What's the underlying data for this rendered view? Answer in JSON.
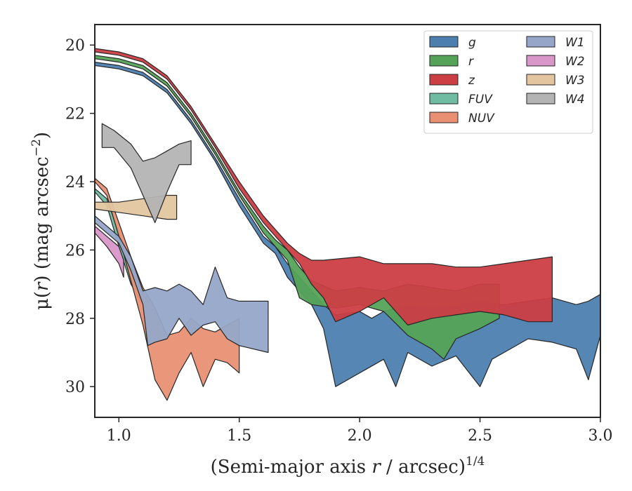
{
  "chart_data": {
    "type": "area",
    "xlabel_main": "(Semi-major axis ",
    "xlabel_var": "r",
    "xlabel_rest": " / arcsec)",
    "xlabel_sup": "1/4",
    "ylabel_main": "μ(",
    "ylabel_var": "r",
    "ylabel_rest": ") (mag arcsec",
    "ylabel_sup": "−2",
    "ylabel_end": ")",
    "xlim": [
      0.9,
      3.0
    ],
    "ylim": [
      30.9,
      19.4
    ],
    "xticks": [
      1.0,
      1.5,
      2.0,
      2.5,
      3.0
    ],
    "xtick_labels": [
      "1.0",
      "1.5",
      "2.0",
      "2.5",
      "3.0"
    ],
    "yticks": [
      20,
      22,
      24,
      26,
      28,
      30
    ],
    "ytick_labels": [
      "20",
      "22",
      "24",
      "26",
      "28",
      "30"
    ],
    "legend_position": "top-right",
    "series": [
      {
        "name": "g",
        "color": "#4c7fb0",
        "upper": [
          [
            0.9,
            20.5
          ],
          [
            1.0,
            20.6
          ],
          [
            1.1,
            20.8
          ],
          [
            1.2,
            21.3
          ],
          [
            1.3,
            22.2
          ],
          [
            1.4,
            23.3
          ],
          [
            1.5,
            24.5
          ],
          [
            1.6,
            25.6
          ],
          [
            1.65,
            25.9
          ],
          [
            1.7,
            26.4
          ],
          [
            1.75,
            26.8
          ],
          [
            1.8,
            27.2
          ],
          [
            1.85,
            27.6
          ],
          [
            1.9,
            27.9
          ],
          [
            2.0,
            27.8
          ],
          [
            2.05,
            28.0
          ],
          [
            2.1,
            27.8
          ],
          [
            2.2,
            27.6
          ],
          [
            2.3,
            27.7
          ],
          [
            2.4,
            27.6
          ],
          [
            2.5,
            27.5
          ],
          [
            2.6,
            27.6
          ],
          [
            2.7,
            27.5
          ],
          [
            2.8,
            27.4
          ],
          [
            2.9,
            27.6
          ],
          [
            2.95,
            27.5
          ],
          [
            3.0,
            27.3
          ]
        ],
        "lower": [
          [
            0.9,
            20.6
          ],
          [
            1.0,
            20.7
          ],
          [
            1.1,
            20.9
          ],
          [
            1.2,
            21.4
          ],
          [
            1.3,
            22.3
          ],
          [
            1.4,
            23.4
          ],
          [
            1.5,
            24.7
          ],
          [
            1.6,
            25.8
          ],
          [
            1.65,
            26.1
          ],
          [
            1.7,
            26.8
          ],
          [
            1.75,
            27.2
          ],
          [
            1.8,
            27.6
          ],
          [
            1.85,
            28.3
          ],
          [
            1.9,
            30.0
          ],
          [
            2.0,
            29.6
          ],
          [
            2.1,
            29.2
          ],
          [
            2.15,
            30.0
          ],
          [
            2.2,
            29.0
          ],
          [
            2.3,
            29.4
          ],
          [
            2.4,
            29.1
          ],
          [
            2.5,
            30.0
          ],
          [
            2.55,
            29.2
          ],
          [
            2.6,
            29.0
          ],
          [
            2.7,
            28.6
          ],
          [
            2.8,
            28.7
          ],
          [
            2.9,
            28.9
          ],
          [
            2.95,
            29.8
          ],
          [
            3.0,
            28.5
          ]
        ]
      },
      {
        "name": "r",
        "color": "#55a358",
        "upper": [
          [
            0.9,
            20.3
          ],
          [
            1.0,
            20.4
          ],
          [
            1.1,
            20.6
          ],
          [
            1.2,
            21.1
          ],
          [
            1.3,
            22.0
          ],
          [
            1.4,
            23.1
          ],
          [
            1.5,
            24.3
          ],
          [
            1.6,
            25.3
          ],
          [
            1.65,
            25.7
          ],
          [
            1.7,
            26.0
          ],
          [
            1.75,
            26.5
          ],
          [
            1.8,
            26.9
          ],
          [
            1.9,
            27.2
          ],
          [
            2.0,
            27.1
          ],
          [
            2.1,
            27.2
          ],
          [
            2.2,
            27.0
          ],
          [
            2.3,
            27.1
          ],
          [
            2.4,
            27.2
          ],
          [
            2.5,
            27.0
          ],
          [
            2.58,
            27.0
          ]
        ],
        "lower": [
          [
            0.9,
            20.4
          ],
          [
            1.0,
            20.5
          ],
          [
            1.1,
            20.7
          ],
          [
            1.2,
            21.2
          ],
          [
            1.3,
            22.1
          ],
          [
            1.4,
            23.2
          ],
          [
            1.5,
            24.4
          ],
          [
            1.6,
            25.5
          ],
          [
            1.65,
            25.9
          ],
          [
            1.7,
            26.3
          ],
          [
            1.75,
            27.4
          ],
          [
            1.8,
            27.6
          ],
          [
            1.9,
            27.7
          ],
          [
            2.0,
            27.6
          ],
          [
            2.1,
            27.8
          ],
          [
            2.2,
            28.5
          ],
          [
            2.3,
            28.9
          ],
          [
            2.35,
            29.2
          ],
          [
            2.4,
            28.6
          ],
          [
            2.5,
            28.3
          ],
          [
            2.58,
            28.0
          ]
        ]
      },
      {
        "name": "z",
        "color": "#cb3e44",
        "upper": [
          [
            0.9,
            20.1
          ],
          [
            1.0,
            20.2
          ],
          [
            1.1,
            20.4
          ],
          [
            1.2,
            20.9
          ],
          [
            1.3,
            21.8
          ],
          [
            1.4,
            22.9
          ],
          [
            1.5,
            24.0
          ],
          [
            1.6,
            25.0
          ],
          [
            1.65,
            25.4
          ],
          [
            1.7,
            25.8
          ],
          [
            1.75,
            26.1
          ],
          [
            1.8,
            26.3
          ],
          [
            1.85,
            26.3
          ],
          [
            2.0,
            26.2
          ],
          [
            2.1,
            26.4
          ],
          [
            2.2,
            26.4
          ],
          [
            2.3,
            26.4
          ],
          [
            2.4,
            26.5
          ],
          [
            2.5,
            26.5
          ],
          [
            2.6,
            26.4
          ],
          [
            2.7,
            26.3
          ],
          [
            2.8,
            26.2
          ]
        ],
        "lower": [
          [
            0.9,
            20.2
          ],
          [
            1.0,
            20.3
          ],
          [
            1.1,
            20.5
          ],
          [
            1.2,
            21.0
          ],
          [
            1.3,
            21.9
          ],
          [
            1.4,
            23.0
          ],
          [
            1.5,
            24.2
          ],
          [
            1.6,
            25.2
          ],
          [
            1.65,
            25.6
          ],
          [
            1.7,
            26.0
          ],
          [
            1.75,
            26.4
          ],
          [
            1.8,
            27.0
          ],
          [
            1.85,
            27.4
          ],
          [
            1.9,
            28.1
          ],
          [
            2.0,
            27.8
          ],
          [
            2.1,
            27.4
          ],
          [
            2.2,
            28.2
          ],
          [
            2.3,
            28.0
          ],
          [
            2.4,
            27.9
          ],
          [
            2.5,
            27.8
          ],
          [
            2.6,
            27.9
          ],
          [
            2.7,
            28.1
          ],
          [
            2.8,
            28.1
          ]
        ]
      },
      {
        "name": "FUV",
        "color": "#6fbca2",
        "upper": [
          [
            0.9,
            24.2
          ],
          [
            0.95,
            24.5
          ],
          [
            1.0,
            25.5
          ],
          [
            1.05,
            26.5
          ],
          [
            1.1,
            27.3
          ],
          [
            1.15,
            27.8
          ]
        ],
        "lower": [
          [
            0.9,
            24.3
          ],
          [
            0.95,
            24.7
          ],
          [
            1.0,
            25.9
          ],
          [
            1.05,
            27.0
          ],
          [
            1.1,
            27.6
          ],
          [
            1.15,
            28.0
          ]
        ]
      },
      {
        "name": "NUV",
        "color": "#e99073",
        "upper": [
          [
            0.9,
            23.9
          ],
          [
            0.95,
            24.2
          ],
          [
            1.0,
            25.2
          ],
          [
            1.05,
            26.2
          ],
          [
            1.1,
            27.1
          ],
          [
            1.15,
            27.7
          ],
          [
            1.2,
            28.5
          ],
          [
            1.25,
            28.4
          ],
          [
            1.3,
            28.0
          ],
          [
            1.35,
            28.3
          ],
          [
            1.4,
            28.4
          ],
          [
            1.45,
            28.2
          ],
          [
            1.5,
            28.0
          ]
        ],
        "lower": [
          [
            0.9,
            24.0
          ],
          [
            0.95,
            24.4
          ],
          [
            1.0,
            25.6
          ],
          [
            1.05,
            26.9
          ],
          [
            1.1,
            28.2
          ],
          [
            1.15,
            29.8
          ],
          [
            1.2,
            30.4
          ],
          [
            1.25,
            29.6
          ],
          [
            1.3,
            29.0
          ],
          [
            1.35,
            30.0
          ],
          [
            1.4,
            29.2
          ],
          [
            1.45,
            29.3
          ],
          [
            1.5,
            29.6
          ]
        ]
      },
      {
        "name": "W1",
        "color": "#95a6c8",
        "upper": [
          [
            0.9,
            25.0
          ],
          [
            1.0,
            25.6
          ],
          [
            1.05,
            26.2
          ],
          [
            1.1,
            27.2
          ],
          [
            1.15,
            27.1
          ],
          [
            1.2,
            27.2
          ],
          [
            1.25,
            27.0
          ],
          [
            1.3,
            27.2
          ],
          [
            1.35,
            27.6
          ],
          [
            1.4,
            26.5
          ],
          [
            1.45,
            27.4
          ],
          [
            1.5,
            27.5
          ],
          [
            1.62,
            27.5
          ]
        ],
        "lower": [
          [
            0.9,
            25.2
          ],
          [
            1.0,
            25.8
          ],
          [
            1.05,
            26.6
          ],
          [
            1.1,
            27.6
          ],
          [
            1.12,
            28.8
          ],
          [
            1.15,
            28.7
          ],
          [
            1.2,
            28.6
          ],
          [
            1.25,
            28.0
          ],
          [
            1.3,
            28.5
          ],
          [
            1.35,
            28.2
          ],
          [
            1.4,
            28.1
          ],
          [
            1.45,
            28.6
          ],
          [
            1.5,
            28.8
          ],
          [
            1.62,
            29.0
          ]
        ]
      },
      {
        "name": "W2",
        "color": "#d996c8",
        "upper": [
          [
            0.9,
            25.3
          ],
          [
            0.95,
            25.6
          ],
          [
            1.0,
            25.9
          ],
          [
            1.02,
            26.3
          ]
        ],
        "lower": [
          [
            0.9,
            25.5
          ],
          [
            0.95,
            25.9
          ],
          [
            1.0,
            26.4
          ],
          [
            1.02,
            26.8
          ]
        ]
      },
      {
        "name": "W3",
        "color": "#e3c6a0",
        "upper": [
          [
            0.9,
            24.6
          ],
          [
            1.0,
            24.6
          ],
          [
            1.1,
            24.5
          ],
          [
            1.2,
            24.4
          ],
          [
            1.24,
            24.4
          ]
        ],
        "lower": [
          [
            0.9,
            24.8
          ],
          [
            1.0,
            24.9
          ],
          [
            1.1,
            25.0
          ],
          [
            1.2,
            25.1
          ],
          [
            1.24,
            25.1
          ]
        ]
      },
      {
        "name": "W4",
        "color": "#b4b4b4",
        "upper": [
          [
            0.93,
            22.3
          ],
          [
            0.98,
            22.5
          ],
          [
            1.05,
            22.9
          ],
          [
            1.1,
            23.4
          ],
          [
            1.15,
            23.3
          ],
          [
            1.2,
            23.1
          ],
          [
            1.25,
            22.9
          ],
          [
            1.3,
            22.8
          ]
        ],
        "lower": [
          [
            0.93,
            23.0
          ],
          [
            0.98,
            23.0
          ],
          [
            1.05,
            23.6
          ],
          [
            1.1,
            24.4
          ],
          [
            1.15,
            25.2
          ],
          [
            1.2,
            24.3
          ],
          [
            1.25,
            23.5
          ],
          [
            1.3,
            23.5
          ]
        ]
      }
    ]
  }
}
